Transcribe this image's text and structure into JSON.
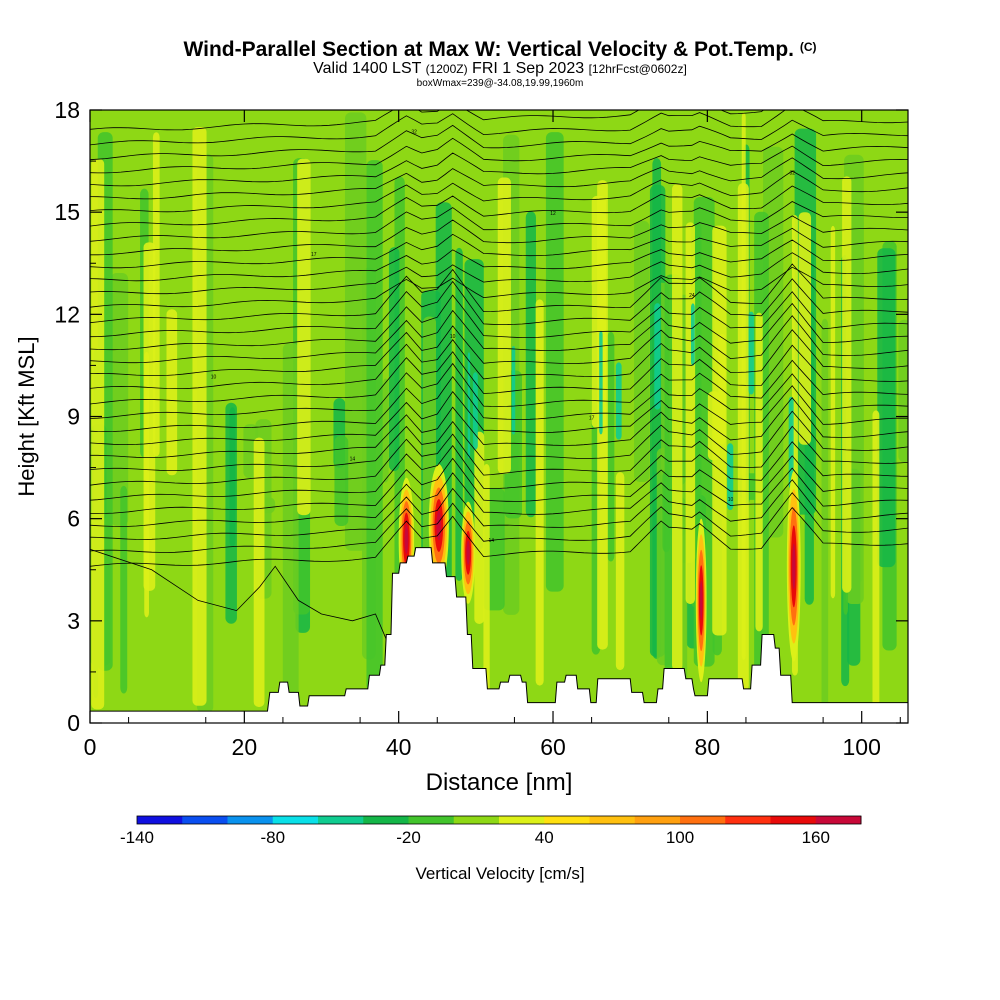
{
  "header": {
    "title": "Wind-Parallel Section at Max W: Vertical Velocity & Pot.Temp.",
    "copyright": "(C)",
    "valid_prefix": "Valid 1400 LST",
    "valid_z": "(1200Z)",
    "valid_date": "FRI 1 Sep 2023",
    "forecast": "[12hrFcst@0602z]",
    "box_info": "boxWmax=239@-34.08,19.99,1960m"
  },
  "chart_data": {
    "type": "heatmap",
    "xlabel": "Distance [nm]",
    "ylabel": "Height [Kft MSL]",
    "xlim": [
      0,
      106
    ],
    "ylim": [
      0,
      18
    ],
    "xticks": [
      0,
      20,
      40,
      60,
      80,
      100
    ],
    "yticks": [
      0,
      3,
      6,
      9,
      12,
      15,
      18
    ],
    "colorbar_title": "Vertical Velocity [cm/s]",
    "colorbar_ticks": [
      "-140",
      "-80",
      "-20",
      "40",
      "100",
      "160"
    ],
    "colorbar_colors": [
      "#1010e0",
      "#0a4ef0",
      "#0a92ee",
      "#0ae0e8",
      "#10cc90",
      "#14b648",
      "#42c42c",
      "#8ed815",
      "#dcf018",
      "#ffe010",
      "#ffc010",
      "#ffa010",
      "#ff7010",
      "#ff3010",
      "#e80a0a",
      "#c80838"
    ],
    "colorbar_range": [
      -140,
      180
    ],
    "terrain_profile": [
      [
        0,
        0.35
      ],
      [
        5,
        0.35
      ],
      [
        9,
        0.35
      ],
      [
        15,
        0.35
      ],
      [
        23,
        0.35
      ],
      [
        23.3,
        0.9
      ],
      [
        24.4,
        0.9
      ],
      [
        24.6,
        1.2
      ],
      [
        25.6,
        1.2
      ],
      [
        25.8,
        0.9
      ],
      [
        27,
        0.9
      ],
      [
        27.2,
        0.5
      ],
      [
        28.2,
        0.5
      ],
      [
        28.4,
        0.8
      ],
      [
        33,
        0.8
      ],
      [
        33.2,
        1.0
      ],
      [
        36,
        1.0
      ],
      [
        36.2,
        1.4
      ],
      [
        37.5,
        1.4
      ],
      [
        37.7,
        1.7
      ],
      [
        38.2,
        1.7
      ],
      [
        38.4,
        2.6
      ],
      [
        39,
        2.6
      ],
      [
        39.2,
        4.4
      ],
      [
        40,
        4.4
      ],
      [
        40.2,
        4.7
      ],
      [
        41,
        4.7
      ],
      [
        41.2,
        4.9
      ],
      [
        42,
        4.9
      ],
      [
        42.2,
        5.15
      ],
      [
        44.2,
        5.15
      ],
      [
        44.4,
        4.7
      ],
      [
        46,
        4.7
      ],
      [
        46.2,
        4.3
      ],
      [
        47.3,
        4.3
      ],
      [
        47.5,
        3.7
      ],
      [
        48.7,
        3.7
      ],
      [
        48.9,
        2.6
      ],
      [
        49.4,
        2.6
      ],
      [
        49.6,
        1.6
      ],
      [
        51.3,
        1.6
      ],
      [
        51.5,
        1.0
      ],
      [
        53,
        1.0
      ],
      [
        53.2,
        1.2
      ],
      [
        54.2,
        1.2
      ],
      [
        54.4,
        1.4
      ],
      [
        55.8,
        1.4
      ],
      [
        56,
        1.2
      ],
      [
        56.5,
        1.2
      ],
      [
        56.7,
        0.6
      ],
      [
        60.3,
        0.6
      ],
      [
        60.5,
        1.2
      ],
      [
        61.5,
        1.2
      ],
      [
        61.7,
        1.4
      ],
      [
        63,
        1.4
      ],
      [
        63.2,
        1.0
      ],
      [
        64.7,
        1.0
      ],
      [
        64.9,
        0.6
      ],
      [
        65.6,
        0.6
      ],
      [
        65.8,
        1.3
      ],
      [
        70,
        1.3
      ],
      [
        70.2,
        0.9
      ],
      [
        71.6,
        0.9
      ],
      [
        71.8,
        0.6
      ],
      [
        73.4,
        0.6
      ],
      [
        73.6,
        1.0
      ],
      [
        74.2,
        1.0
      ],
      [
        74.4,
        1.6
      ],
      [
        77,
        1.6
      ],
      [
        77.2,
        1.3
      ],
      [
        78,
        1.3
      ],
      [
        78.2,
        1.0
      ],
      [
        78.4,
        0.8
      ],
      [
        80,
        0.8
      ],
      [
        80.2,
        1.3
      ],
      [
        84.5,
        1.3
      ],
      [
        84.7,
        1.0
      ],
      [
        85.6,
        1.0
      ],
      [
        85.8,
        1.7
      ],
      [
        86.9,
        1.7
      ],
      [
        87.1,
        2.6
      ],
      [
        88.6,
        2.6
      ],
      [
        88.8,
        2.2
      ],
      [
        89.3,
        2.2
      ],
      [
        89.5,
        1.4
      ],
      [
        90.8,
        1.4
      ],
      [
        91,
        0.6
      ],
      [
        106,
        0.6
      ]
    ],
    "updraft_cores": [
      [
        41,
        5.4,
        1.0,
        1.8
      ],
      [
        45.2,
        5.8,
        1.3,
        1.8
      ],
      [
        49,
        5.0,
        0.9,
        1.5
      ],
      [
        79.2,
        3.6,
        0.7,
        2.4
      ],
      [
        91.2,
        4.6,
        0.9,
        2.8
      ]
    ],
    "isentrope_labels": [
      "14",
      "10",
      "14",
      "17",
      "10",
      "10",
      "24",
      "17",
      "12",
      "32",
      "32",
      "34",
      "38",
      "38",
      "34",
      "32",
      "30",
      "24",
      "32",
      "38",
      "30",
      "22",
      "32",
      "34",
      "36",
      "38",
      "24",
      "26",
      "34"
    ]
  }
}
